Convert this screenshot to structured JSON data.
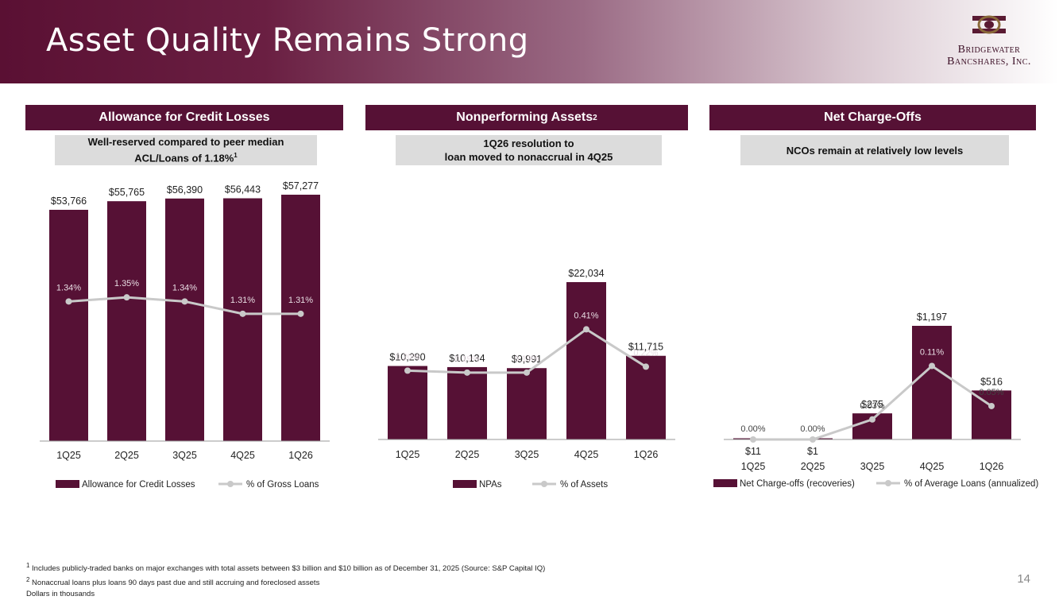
{
  "header": {
    "title": "Asset Quality Remains Strong",
    "logo_line1": "Bridgewater",
    "logo_line2": "Bancshares, Inc."
  },
  "panels": [
    {
      "header": "Allowance for Credit Losses",
      "header_sup": "",
      "note_line1": "Well-reserved compared to peer median",
      "note_line2": "ACL/Loans of 1.18%",
      "note_sup": "1"
    },
    {
      "header": "Nonperforming Assets",
      "header_sup": "2",
      "note_line1": "1Q26 resolution to",
      "note_line2": "loan moved to nonaccrual in 4Q25",
      "note_sup": ""
    },
    {
      "header": "Net Charge-Offs",
      "header_sup": "",
      "note_line1": "NCOs remain at relatively low levels",
      "note_line2": "",
      "note_sup": ""
    }
  ],
  "chart_data": [
    {
      "type": "bar",
      "categories": [
        "1Q25",
        "2Q25",
        "3Q25",
        "4Q25",
        "1Q26"
      ],
      "series": [
        {
          "name": "Allowance for Credit Losses",
          "kind": "bar",
          "values": [
            53766,
            55765,
            56390,
            56443,
            57277
          ],
          "labels": [
            "$53,766",
            "$55,765",
            "$56,390",
            "$56,443",
            "$57,277"
          ]
        },
        {
          "name": "% of Gross Loans",
          "kind": "line",
          "values": [
            1.34,
            1.35,
            1.34,
            1.31,
            1.31
          ],
          "labels": [
            "1.34%",
            "1.35%",
            "1.34%",
            "1.31%",
            "1.31%"
          ]
        }
      ],
      "bar_max": 57277,
      "line_range": [
        1.0,
        1.6
      ],
      "legend": "bottom"
    },
    {
      "type": "bar",
      "categories": [
        "1Q25",
        "2Q25",
        "3Q25",
        "4Q25",
        "1Q26"
      ],
      "series": [
        {
          "name": "NPAs",
          "kind": "bar",
          "values": [
            10290,
            10134,
            9991,
            22034,
            11715
          ],
          "labels": [
            "$10,290",
            "$10,134",
            "$9,991",
            "$22,034",
            "$11,715"
          ]
        },
        {
          "name": "% of Assets",
          "kind": "line",
          "values": [
            0.2,
            0.19,
            0.19,
            0.41,
            0.22
          ],
          "labels": [
            "0.20%",
            "0.19%",
            "0.19%",
            "0.41%",
            "0.22%"
          ]
        }
      ],
      "bar_max": 22034,
      "line_range": [
        -0.15,
        0.65
      ],
      "legend": "bottom"
    },
    {
      "type": "bar",
      "categories": [
        "1Q25",
        "2Q25",
        "3Q25",
        "4Q25",
        "1Q26"
      ],
      "series": [
        {
          "name": "Net Charge-offs (recoveries)",
          "kind": "bar",
          "values": [
            11,
            1,
            275,
            1197,
            516
          ],
          "labels": [
            "$11",
            "$1",
            "$275",
            "$1,197",
            "$516"
          ]
        },
        {
          "name": "% of Average Loans (annualized)",
          "kind": "line",
          "values": [
            0.0,
            0.0,
            0.03,
            0.11,
            0.05
          ],
          "labels": [
            "0.00%",
            "0.00%",
            "0.03%",
            "0.11%",
            "0.05%"
          ]
        }
      ],
      "bar_max": 1197,
      "line_range": [
        0.0,
        0.17
      ],
      "legend": "bottom"
    }
  ],
  "colors": {
    "bar": "#561135",
    "line": "#c9c9c9",
    "header_bg": "#561135",
    "note_bg": "#dcdcdc"
  },
  "footnotes": {
    "f1_mark": "1",
    "f1_text": "Includes publicly-traded banks on major exchanges with total assets between $3 billion and $10 billion as of December 31, 2025 (Source: S&P Capital IQ)",
    "f2_mark": "2",
    "f2_text": "Nonaccrual loans plus loans 90 days past due and still accruing and foreclosed assets",
    "f3_text": "Dollars in thousands"
  },
  "page_number": "14"
}
